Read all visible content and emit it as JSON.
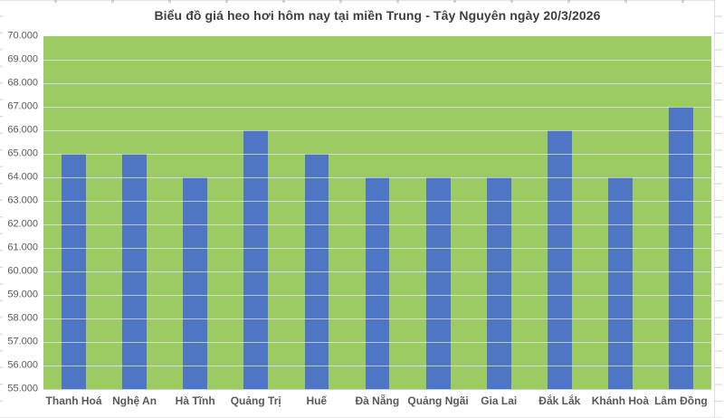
{
  "chart_data": {
    "type": "bar",
    "title": "Biểu đồ giá heo hơi hôm nay tại miền Trung - Tây Nguyên ngày 20/3/2026",
    "categories": [
      "Thanh Hoá",
      "Nghệ An",
      "Hà Tĩnh",
      "Quảng Trị",
      "Huế",
      "Đà Nẵng",
      "Quảng Ngãi",
      "Gia Lai",
      "Đắk Lắk",
      "Khánh Hoà",
      "Lâm Đồng"
    ],
    "values": [
      65000,
      65000,
      64000,
      66000,
      65000,
      64000,
      64000,
      64000,
      66000,
      64000,
      67000
    ],
    "xlabel": "",
    "ylabel": "",
    "ylim": [
      55000,
      70000
    ],
    "ytick_step": 1000,
    "ytick_labels": [
      "55.000",
      "56.000",
      "57.000",
      "58.000",
      "59.000",
      "60.000",
      "61.000",
      "62.000",
      "63.000",
      "64.000",
      "65.000",
      "66.000",
      "67.000",
      "68.000",
      "69.000",
      "70.000"
    ],
    "grid": true,
    "legend": false,
    "bar_gap_style": "excel-default-150"
  },
  "colors": {
    "bar": "#4F76C5",
    "plot_background": "#9CCB63",
    "gridline": "rgba(255,255,255,0.55)",
    "axis_text": "#595959",
    "title_text": "#3F3F3F",
    "frame_line": "#E6E6E6"
  }
}
